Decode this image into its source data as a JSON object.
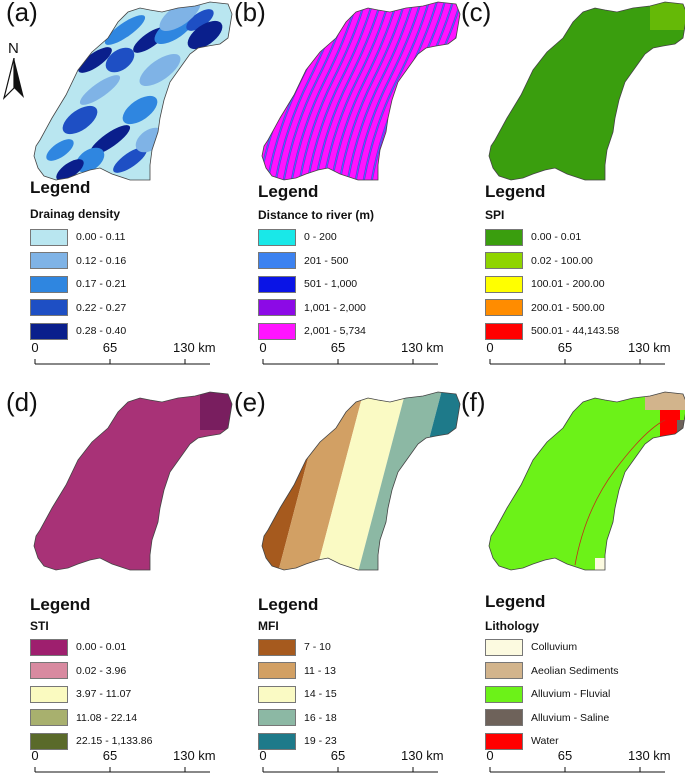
{
  "north_label": "N",
  "scale_ticks": [
    "0",
    "65",
    "130 km"
  ],
  "panels": [
    {
      "id": "a",
      "label": "(a)",
      "legend_title": "Legend",
      "legend_sub": "Drainag density",
      "items": [
        {
          "label": "0.00 - 0.11",
          "color": "#b9e6f0"
        },
        {
          "label": "0.12 - 0.16",
          "color": "#7fb3e6"
        },
        {
          "label": "0.17 - 0.21",
          "color": "#2f86e0"
        },
        {
          "label": "0.22 - 0.27",
          "color": "#1e4fc4"
        },
        {
          "label": "0.28 - 0.40",
          "color": "#0a1f8c"
        }
      ]
    },
    {
      "id": "b",
      "label": "(b)",
      "legend_title": "Legend",
      "legend_sub": "Distance to river (m)",
      "items": [
        {
          "label": "0 - 200",
          "color": "#19e8e8"
        },
        {
          "label": "201 - 500",
          "color": "#3c82f0"
        },
        {
          "label": "501 - 1,000",
          "color": "#0a14e6"
        },
        {
          "label": "1,001 - 2,000",
          "color": "#8c0ae6"
        },
        {
          "label": "2,001 - 5,734",
          "color": "#ff14ff"
        }
      ]
    },
    {
      "id": "c",
      "label": "(c)",
      "legend_title": "Legend",
      "legend_sub": "SPI",
      "items": [
        {
          "label": "0.00 - 0.01",
          "color": "#3a9e0e"
        },
        {
          "label": "0.02 - 100.00",
          "color": "#8fd400"
        },
        {
          "label": "100.01 - 200.00",
          "color": "#ffff00"
        },
        {
          "label": "200.01 - 500.00",
          "color": "#ff8c00"
        },
        {
          "label": "500.01 - 44,143.58",
          "color": "#ff0000"
        }
      ]
    },
    {
      "id": "d",
      "label": "(d)",
      "legend_title": "Legend",
      "legend_sub": "STI",
      "items": [
        {
          "label": "0.00 - 0.01",
          "color": "#9e1f6e"
        },
        {
          "label": "0.02 - 3.96",
          "color": "#d88aa0"
        },
        {
          "label": "3.97 - 11.07",
          "color": "#fafac0"
        },
        {
          "label": "11.08 - 22.14",
          "color": "#a8b06e"
        },
        {
          "label": "22.15 - 1,133.86",
          "color": "#5a6a2a"
        }
      ]
    },
    {
      "id": "e",
      "label": "(e)",
      "legend_title": "Legend",
      "legend_sub": "MFI",
      "items": [
        {
          "label": "7 - 10",
          "color": "#a65a1e"
        },
        {
          "label": "11 - 13",
          "color": "#d2a064"
        },
        {
          "label": "14 - 15",
          "color": "#fafac4"
        },
        {
          "label": "16 - 18",
          "color": "#8cb8a4"
        },
        {
          "label": "19 - 23",
          "color": "#1e7a8a"
        }
      ]
    },
    {
      "id": "f",
      "label": "(f)",
      "legend_title": "Legend",
      "legend_sub": "Lithology",
      "items": [
        {
          "label": "Colluvium",
          "color": "#fcfae0"
        },
        {
          "label": "Aeolian Sediments",
          "color": "#d2b48c"
        },
        {
          "label": "Alluvium - Fluvial",
          "color": "#6cf218"
        },
        {
          "label": "Alluvium - Saline",
          "color": "#6e625a"
        },
        {
          "label": "Water",
          "color": "#ff0000"
        }
      ]
    }
  ]
}
